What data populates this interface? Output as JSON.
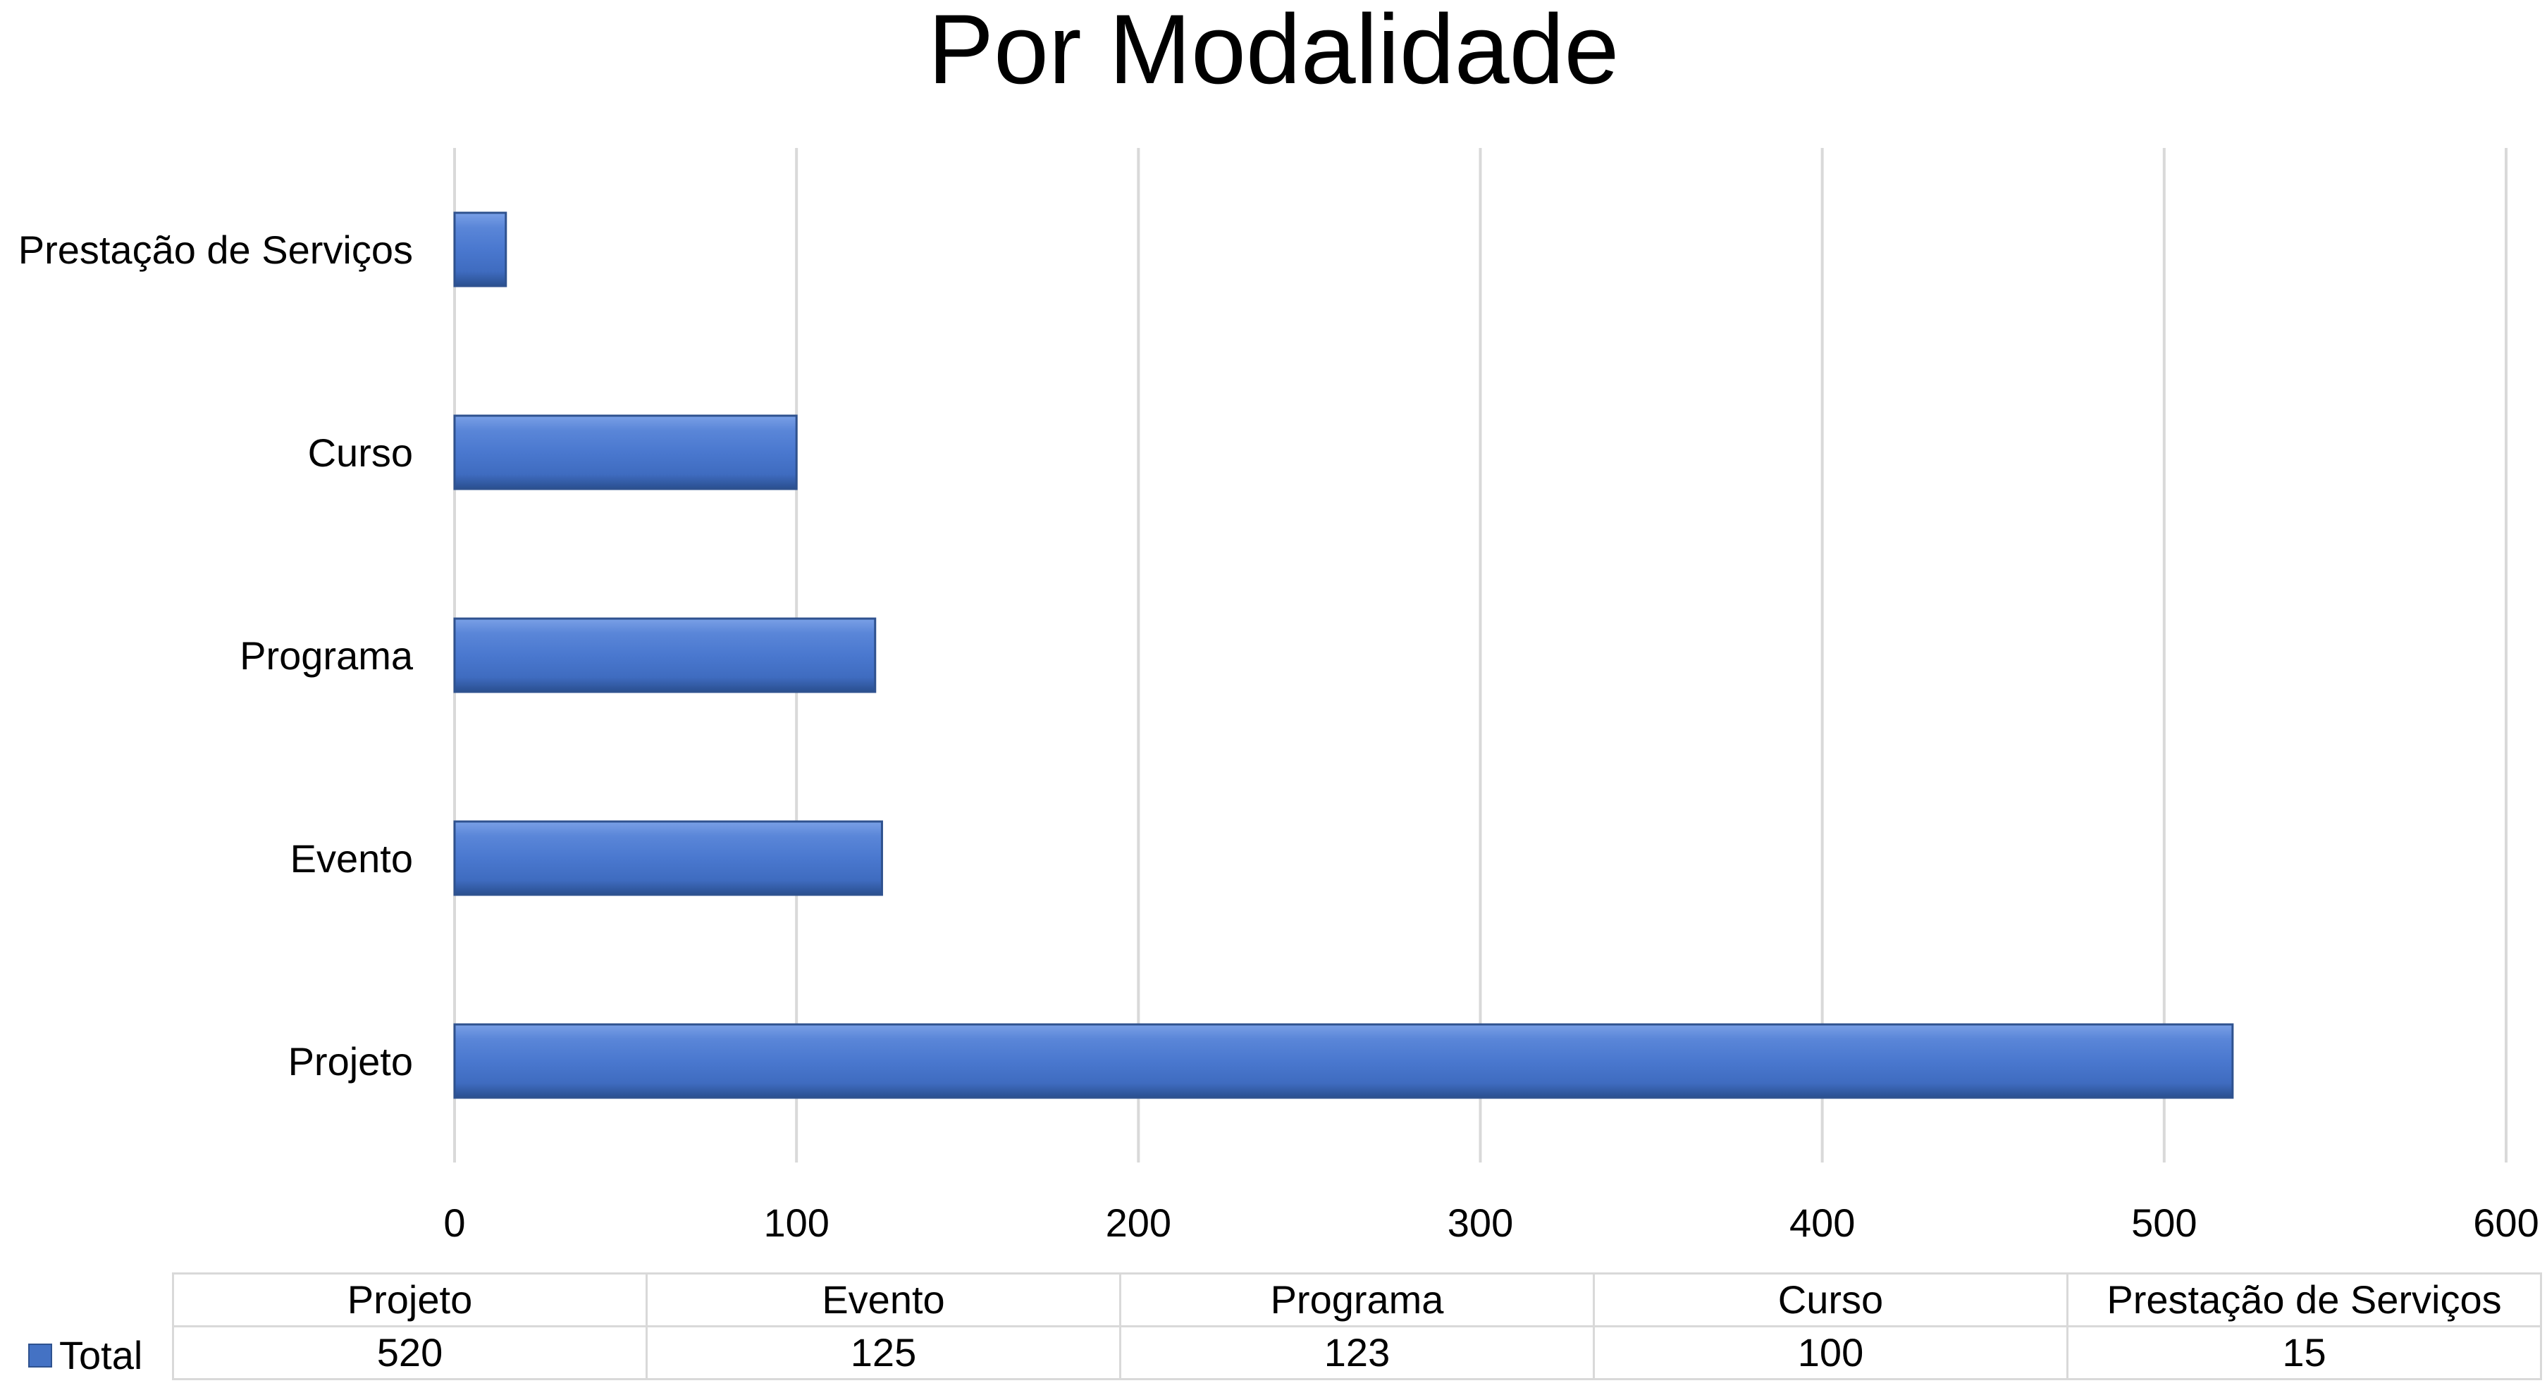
{
  "chart_data": {
    "type": "bar",
    "orientation": "horizontal",
    "title": "Por Modalidade",
    "categories": [
      "Projeto",
      "Evento",
      "Programa",
      "Curso",
      "Prestação de Serviços"
    ],
    "series": [
      {
        "name": "Total",
        "values": [
          520,
          125,
          123,
          100,
          15
        ]
      }
    ],
    "xlim": [
      0,
      600
    ],
    "xticks": [
      0,
      100,
      200,
      300,
      400,
      500,
      600
    ],
    "grid": true,
    "data_table": true,
    "colors": {
      "bar": "#4472c4",
      "bar_light": "#6f94dc",
      "bar_dark": "#2f528f"
    }
  }
}
